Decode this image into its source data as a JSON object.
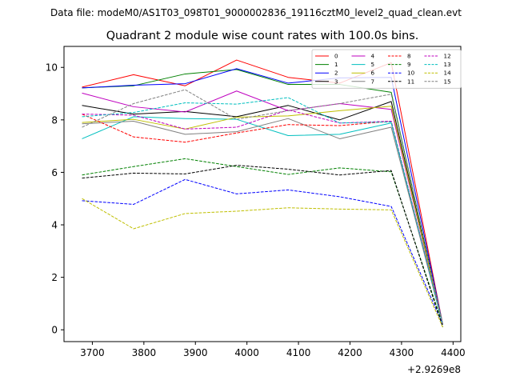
{
  "chart_data": {
    "type": "line",
    "suptitle": "Data file: modeM0/AS1T03_098T01_9000002836_19116cztM0_level2_quad_clean.evt",
    "title": "Quadrant 2 module wise count rates with 100.0s bins.",
    "xlabel": "",
    "ylabel": "",
    "x_offset_label": "+2.9269e8",
    "x_offset": 292690000,
    "x": [
      3680,
      3780,
      3880,
      3980,
      4080,
      4180,
      4280,
      4380
    ],
    "xlim": [
      3645,
      4415
    ],
    "ylim": [
      -0.45,
      10.8
    ],
    "xticks": [
      3700,
      3800,
      3900,
      4000,
      4100,
      4200,
      4300,
      4400
    ],
    "xtick_labels": [
      "3700",
      "3800",
      "3900",
      "4000",
      "4100",
      "4200",
      "4300",
      "4400"
    ],
    "yticks": [
      0,
      2,
      4,
      6,
      8,
      10
    ],
    "ytick_labels": [
      "0",
      "2",
      "4",
      "6",
      "8",
      "10"
    ],
    "grid": false,
    "legend_position": "top-right",
    "legend_columns": 4,
    "series": [
      {
        "name": "0",
        "color": "#ff0000",
        "dash": "solid",
        "values": [
          9.25,
          9.72,
          9.3,
          10.28,
          9.62,
          9.4,
          10.18,
          0.2
        ]
      },
      {
        "name": "1",
        "color": "#008000",
        "dash": "solid",
        "values": [
          9.22,
          9.3,
          9.75,
          9.92,
          9.35,
          9.35,
          9.05,
          0.2
        ]
      },
      {
        "name": "2",
        "color": "#0000ff",
        "dash": "solid",
        "values": [
          9.22,
          9.32,
          9.38,
          9.95,
          9.4,
          9.6,
          9.62,
          0.2
        ]
      },
      {
        "name": "3",
        "color": "#000000",
        "dash": "solid",
        "values": [
          8.55,
          8.22,
          8.32,
          8.12,
          8.55,
          8.0,
          8.7,
          0.2
        ]
      },
      {
        "name": "4",
        "color": "#bf00bf",
        "dash": "solid",
        "values": [
          9.02,
          8.5,
          8.3,
          9.1,
          8.35,
          8.62,
          8.4,
          0.2
        ]
      },
      {
        "name": "5",
        "color": "#00bfbf",
        "dash": "solid",
        "values": [
          7.28,
          8.12,
          8.05,
          8.02,
          7.4,
          7.45,
          7.88,
          0.2
        ]
      },
      {
        "name": "6",
        "color": "#bfbf00",
        "dash": "solid",
        "values": [
          7.9,
          8.02,
          7.65,
          8.1,
          8.15,
          8.35,
          8.52,
          0.2
        ]
      },
      {
        "name": "7",
        "color": "#808080",
        "dash": "solid",
        "values": [
          7.85,
          7.95,
          7.45,
          7.55,
          8.05,
          7.28,
          7.72,
          0.2
        ]
      },
      {
        "name": "8",
        "color": "#ff0000",
        "dash": "dashed",
        "values": [
          8.22,
          7.35,
          7.15,
          7.5,
          7.82,
          7.78,
          7.95,
          0.2
        ]
      },
      {
        "name": "9",
        "color": "#008000",
        "dash": "dashed",
        "values": [
          5.9,
          6.22,
          6.52,
          6.22,
          5.92,
          6.17,
          6.02,
          0.2
        ]
      },
      {
        "name": "10",
        "color": "#0000ff",
        "dash": "dashed",
        "values": [
          4.92,
          4.78,
          5.73,
          5.18,
          5.33,
          5.07,
          4.7,
          0.2
        ]
      },
      {
        "name": "11",
        "color": "#000000",
        "dash": "dashed",
        "values": [
          5.78,
          5.97,
          5.94,
          6.27,
          6.12,
          5.9,
          6.07,
          0.1
        ]
      },
      {
        "name": "12",
        "color": "#bf00bf",
        "dash": "dashed",
        "values": [
          8.22,
          8.18,
          7.65,
          7.72,
          8.38,
          7.88,
          7.95,
          0.2
        ]
      },
      {
        "name": "13",
        "color": "#00bfbf",
        "dash": "dashed",
        "values": [
          8.12,
          8.28,
          8.65,
          8.6,
          8.85,
          7.88,
          7.92,
          0.2
        ]
      },
      {
        "name": "14",
        "color": "#bfbf00",
        "dash": "dashed",
        "values": [
          5.0,
          3.85,
          4.43,
          4.52,
          4.65,
          4.6,
          4.57,
          0.1
        ]
      },
      {
        "name": "15",
        "color": "#808080",
        "dash": "dashed",
        "values": [
          7.72,
          8.62,
          9.15,
          8.02,
          8.35,
          8.62,
          8.98,
          0.2
        ]
      }
    ]
  }
}
